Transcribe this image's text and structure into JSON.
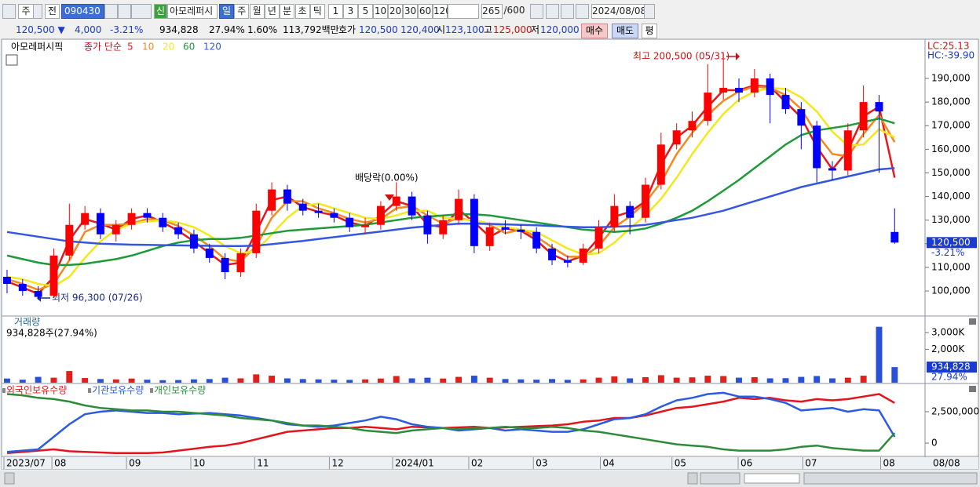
{
  "toolbar": {
    "period": "주",
    "prev": "전",
    "code": "090430",
    "new_badge": "신",
    "name": "아모레퍼시",
    "units": [
      "일",
      "주",
      "월",
      "년",
      "분",
      "초",
      "틱"
    ],
    "intervals": [
      "1",
      "3",
      "5",
      "10",
      "20",
      "30",
      "60",
      "120"
    ],
    "count": "265",
    "max_count": "/600",
    "date": "2024/08/08"
  },
  "quote": {
    "price": "120,500 ▼",
    "change": "4,000",
    "rate": "-3.21%",
    "volume": "934,828",
    "volume_rate": "27.94%",
    "turnover": "1.60%",
    "amount": "113,792백만",
    "ask_label": "호가",
    "ask": "120,500",
    "bid": "120,400",
    "open_label": "시",
    "open": "123,100",
    "high_label": "고",
    "high": "125,000",
    "low_label": "저",
    "low": "120,000",
    "buy": "매수",
    "sell": "매도",
    "avg": "평"
  },
  "chart_data": [
    {
      "type": "candlestick",
      "title": "아모레퍼시픽",
      "legend_title": "종가 단순",
      "xlim": [
        -0.2,
        58.8
      ],
      "ylim": [
        89400,
        205600
      ],
      "yticks": [
        {
          "value": 100000,
          "label": "100,000"
        },
        {
          "value": 110000,
          "label": "110,000"
        },
        {
          "value": 120000,
          "label": "120,000"
        },
        {
          "value": 130000,
          "label": "130,000"
        },
        {
          "value": 140000,
          "label": "140,000"
        },
        {
          "value": 150000,
          "label": "150,000"
        },
        {
          "value": 160000,
          "label": "160,000"
        },
        {
          "value": 170000,
          "label": "170,000"
        },
        {
          "value": 180000,
          "label": "180,000"
        },
        {
          "value": 190000,
          "label": "190,000"
        }
      ],
      "up_color": "#ff0000",
      "down_color": "#0000ff",
      "open": [
        106000,
        103000,
        100000,
        98000,
        115000,
        128000,
        133000,
        124000,
        128000,
        133000,
        131000,
        127000,
        124000,
        118000,
        114000,
        108000,
        116000,
        134000,
        143000,
        137000,
        134000,
        133000,
        131000,
        127000,
        128000,
        136000,
        140000,
        132000,
        124000,
        130000,
        139000,
        119000,
        127000,
        126000,
        125000,
        118000,
        113000,
        112000,
        118000,
        127000,
        136000,
        131000,
        145000,
        162000,
        168000,
        172000,
        184000,
        186000,
        184000,
        190000,
        183000,
        177000,
        170000,
        152000,
        151000,
        168000,
        180000,
        125000
      ],
      "high": [
        109000,
        105000,
        102000,
        118000,
        137000,
        136000,
        135000,
        130000,
        135000,
        135000,
        133000,
        129000,
        126000,
        120000,
        116000,
        118000,
        137000,
        146000,
        145000,
        139000,
        137000,
        135000,
        133000,
        131000,
        138000,
        146000,
        142000,
        134000,
        132000,
        143000,
        141000,
        129000,
        130000,
        128000,
        127000,
        120000,
        115000,
        120000,
        130000,
        141000,
        138000,
        148000,
        167000,
        171000,
        176000,
        196000,
        200500,
        190000,
        194000,
        192000,
        186000,
        180000,
        172000,
        155000,
        171000,
        187000,
        183000,
        135000
      ],
      "low": [
        99000,
        98000,
        96300,
        97000,
        113000,
        126000,
        122000,
        121000,
        126000,
        129000,
        125000,
        122000,
        116000,
        112000,
        105000,
        106000,
        114000,
        132000,
        134000,
        132000,
        131000,
        129000,
        125000,
        124000,
        126000,
        134000,
        130000,
        120000,
        122000,
        128000,
        116000,
        117000,
        124000,
        122000,
        116000,
        111000,
        110000,
        111000,
        116000,
        125000,
        124000,
        129000,
        143000,
        160000,
        165000,
        170000,
        181000,
        180000,
        182000,
        171000,
        175000,
        160000,
        146000,
        147000,
        149000,
        165000,
        150000,
        120000
      ],
      "close": [
        103000,
        100000,
        97500,
        115000,
        128000,
        133000,
        124000,
        128000,
        133000,
        131000,
        127000,
        124000,
        118000,
        114000,
        108000,
        116000,
        134000,
        143000,
        137000,
        134000,
        133000,
        131000,
        127000,
        128000,
        136000,
        140000,
        132000,
        124000,
        130000,
        139000,
        119000,
        127000,
        126000,
        125000,
        118000,
        113000,
        112000,
        118000,
        127000,
        136000,
        131000,
        145000,
        162000,
        168000,
        172000,
        184000,
        186000,
        184000,
        190000,
        183000,
        177000,
        170000,
        152000,
        151000,
        168000,
        180000,
        176000,
        120500
      ],
      "series": [
        {
          "name": "5",
          "color": "#e31a1c",
          "values": [
            104000,
            101500,
            98800,
            106000,
            121500,
            130500,
            128500,
            126000,
            130500,
            132000,
            129000,
            125500,
            121000,
            116000,
            111000,
            112000,
            125000,
            138500,
            140000,
            135500,
            133500,
            132000,
            129000,
            127500,
            132000,
            138000,
            136000,
            128000,
            127000,
            134500,
            129000,
            123000,
            126500,
            125500,
            121500,
            115500,
            112500,
            115000,
            122500,
            131500,
            133500,
            138000,
            153500,
            165000,
            170000,
            178000,
            185000,
            185000,
            187000,
            186500,
            180000,
            173500,
            161000,
            151500,
            159500,
            174000,
            178000,
            148000
          ]
        },
        {
          "name": "10",
          "color": "#f28a1e",
          "values": [
            105000,
            103000,
            100500,
            103000,
            113000,
            125000,
            128000,
            128000,
            128500,
            130500,
            130000,
            127500,
            123500,
            119000,
            113500,
            112500,
            119000,
            131000,
            138000,
            138000,
            135000,
            133000,
            130500,
            129000,
            130500,
            135000,
            136000,
            132000,
            128500,
            131000,
            129500,
            128000,
            124500,
            126000,
            123000,
            118500,
            114500,
            114500,
            119000,
            127000,
            131500,
            137500,
            146000,
            158000,
            167000,
            174500,
            180500,
            184500,
            186500,
            186000,
            183000,
            177000,
            166500,
            158000,
            157000,
            166500,
            174500,
            163000
          ]
        },
        {
          "name": "20",
          "color": "#f2e81c",
          "values": [
            106000,
            105000,
            103000,
            102000,
            106000,
            114000,
            121000,
            126000,
            128500,
            129500,
            130000,
            129000,
            127000,
            123500,
            119000,
            116000,
            117000,
            124000,
            131000,
            136000,
            137000,
            135000,
            133000,
            131000,
            130500,
            132000,
            134000,
            134000,
            131000,
            130500,
            130000,
            128500,
            127000,
            126000,
            125000,
            121500,
            118000,
            115500,
            116000,
            120500,
            126500,
            132000,
            139000,
            148000,
            158000,
            167000,
            175000,
            181000,
            184500,
            186000,
            185500,
            182000,
            176000,
            167500,
            161500,
            162000,
            168500,
            165000
          ]
        },
        {
          "name": "60",
          "color": "#1e9a3a",
          "values": [
            115000,
            113500,
            112000,
            111000,
            111000,
            111500,
            112500,
            113500,
            115000,
            117000,
            119000,
            120500,
            121500,
            122000,
            122000,
            122500,
            123500,
            124500,
            125500,
            126000,
            126500,
            127000,
            127500,
            128000,
            129000,
            130000,
            131000,
            131500,
            132000,
            132500,
            132500,
            132000,
            131000,
            130000,
            129000,
            128000,
            127000,
            126000,
            125500,
            125000,
            125500,
            126500,
            128500,
            131000,
            134000,
            138000,
            142500,
            147000,
            152000,
            157000,
            162000,
            166000,
            168000,
            169000,
            170000,
            171500,
            173000,
            171000
          ]
        },
        {
          "name": "120",
          "color": "#3557e0",
          "values": [
            125000,
            124000,
            123000,
            122000,
            121000,
            120500,
            120000,
            119800,
            119600,
            119500,
            119400,
            119300,
            119200,
            119100,
            119000,
            119000,
            119200,
            119800,
            120500,
            121200,
            122000,
            122800,
            123600,
            124400,
            125200,
            126000,
            126800,
            127400,
            128000,
            128500,
            128500,
            128400,
            128200,
            128000,
            127800,
            127500,
            127200,
            127000,
            127000,
            127200,
            127500,
            128000,
            129000,
            130000,
            131000,
            132500,
            134000,
            136000,
            138000,
            140000,
            142000,
            144000,
            145500,
            147000,
            148500,
            150000,
            151500,
            152000
          ]
        }
      ],
      "annotations": {
        "high": "최고 200,500 (05/31)",
        "dividend": "배당락(0.00%)",
        "low": "최저 96,300 (07/26)"
      },
      "side_labels": {
        "lc": "LC:25.13",
        "hc": "HC:-39.90",
        "last": "120,500",
        "change": "-3.21%"
      }
    },
    {
      "type": "bar",
      "title": "거래량",
      "subtitle": "934,828주(27.94%)",
      "xlim": [
        -0.2,
        58.8
      ],
      "ylim": [
        0,
        3900000
      ],
      "yticks": [
        {
          "value": 2000000,
          "label": "2,000K"
        },
        {
          "value": 3000000,
          "label": "3,000K"
        }
      ],
      "up_color": "#e0201a",
      "down_color": "#2850d8",
      "values": [
        250000,
        180000,
        350000,
        300000,
        700000,
        280000,
        220000,
        200000,
        250000,
        180000,
        150000,
        160000,
        200000,
        220000,
        300000,
        260000,
        500000,
        420000,
        260000,
        220000,
        200000,
        180000,
        170000,
        200000,
        250000,
        400000,
        260000,
        300000,
        250000,
        350000,
        420000,
        300000,
        220000,
        200000,
        180000,
        220000,
        170000,
        200000,
        300000,
        380000,
        260000,
        330000,
        450000,
        300000,
        320000,
        420000,
        400000,
        300000,
        330000,
        260000,
        270000,
        350000,
        400000,
        260000,
        300000,
        420000,
        3350000,
        934828
      ],
      "side_labels": {
        "last": "934,828",
        "ratio": "27.94%"
      }
    },
    {
      "type": "line",
      "xlim": [
        -0.2,
        58.8
      ],
      "ylim": [
        -1060000,
        4620000
      ],
      "yticks": [
        0,
        {
          "value": 2500000,
          "label": "2,500,000"
        }
      ],
      "xticks": [
        {
          "value": -0.2,
          "label": "2023/07"
        },
        {
          "value": 2.88,
          "label": "08"
        },
        {
          "value": 7.67,
          "label": "09"
        },
        {
          "value": 11.8,
          "label": "10"
        },
        {
          "value": 15.9,
          "label": "11"
        },
        {
          "value": 20.7,
          "label": "12"
        },
        {
          "value": 24.76,
          "label": "2024/01"
        },
        {
          "value": 29.65,
          "label": "02"
        },
        {
          "value": 33.8,
          "label": "03"
        },
        {
          "value": 38.1,
          "label": "04"
        },
        {
          "value": 42.7,
          "label": "05"
        },
        {
          "value": 46.95,
          "label": "06"
        },
        {
          "value": 51.1,
          "label": "07"
        },
        {
          "value": 56.1,
          "label": "08"
        }
      ],
      "end_label": "08/08",
      "series": [
        {
          "name": "외국인보유수량",
          "color": "#e3141b",
          "values": [
            -800000,
            -700000,
            -600000,
            -500000,
            -650000,
            -700000,
            -750000,
            -800000,
            -800000,
            -800000,
            -750000,
            -600000,
            -450000,
            -300000,
            -200000,
            0,
            300000,
            600000,
            900000,
            1000000,
            1100000,
            1200000,
            1200000,
            1300000,
            1200000,
            1100000,
            1300000,
            1250000,
            1200000,
            1250000,
            1300000,
            1200000,
            1250000,
            1300000,
            1350000,
            1400000,
            1500000,
            1700000,
            1800000,
            2000000,
            2000000,
            2200000,
            2500000,
            2800000,
            2900000,
            3100000,
            3300000,
            3600000,
            3500000,
            3600000,
            3400000,
            3300000,
            3500000,
            3400000,
            3500000,
            3700000,
            3900000,
            3200000
          ]
        },
        {
          "name": "기관보유수량",
          "color": "#2b5be0",
          "values": [
            -700000,
            -600000,
            -500000,
            500000,
            1500000,
            2300000,
            2500000,
            2600000,
            2500000,
            2400000,
            2400000,
            2300000,
            2350000,
            2400000,
            2300000,
            2200000,
            2000000,
            1800000,
            1500000,
            1400000,
            1300000,
            1400000,
            1600000,
            1800000,
            2100000,
            1900000,
            1500000,
            1300000,
            1200000,
            1000000,
            1100000,
            1200000,
            1000000,
            1100000,
            1000000,
            900000,
            900000,
            1100000,
            1500000,
            1900000,
            2000000,
            2300000,
            2900000,
            3400000,
            3600000,
            3900000,
            4000000,
            3700000,
            3700000,
            3500000,
            3200000,
            2600000,
            2700000,
            2800000,
            2500000,
            2700000,
            2600000,
            500000
          ]
        },
        {
          "name": "개인보유수량",
          "color": "#2e8b3a",
          "values": [
            3900000,
            3800000,
            3600000,
            3500000,
            3300000,
            3000000,
            2800000,
            2700000,
            2600000,
            2600000,
            2500000,
            2500000,
            2400000,
            2300000,
            2200000,
            2000000,
            1900000,
            1800000,
            1600000,
            1400000,
            1400000,
            1300000,
            1200000,
            1000000,
            900000,
            800000,
            1000000,
            1100000,
            1200000,
            1100000,
            1200000,
            1200000,
            1300000,
            1200000,
            1200000,
            1300000,
            1200000,
            1000000,
            900000,
            700000,
            500000,
            300000,
            100000,
            -100000,
            -200000,
            -300000,
            -500000,
            -600000,
            -600000,
            -600000,
            -500000,
            -300000,
            -200000,
            -400000,
            -500000,
            -600000,
            -600000,
            800000
          ]
        }
      ]
    }
  ]
}
